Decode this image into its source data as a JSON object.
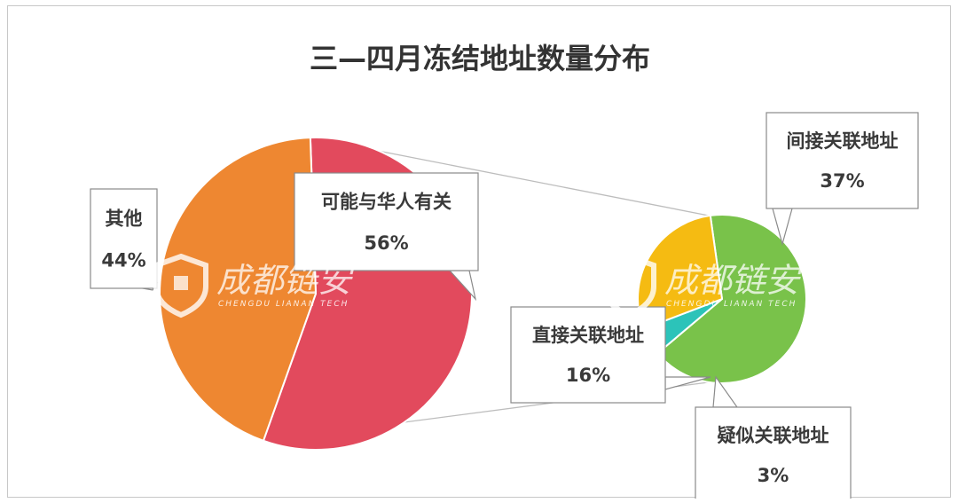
{
  "chart_data": {
    "type": "pie",
    "title": "三—四月冻结地址数量分布",
    "main_pie": [
      {
        "label": "可能与华人有关",
        "value": 56,
        "value_text": "56%",
        "color": "#E24A5D"
      },
      {
        "label": "其他",
        "value": 44,
        "value_text": "44%",
        "color": "#EE8731"
      }
    ],
    "sub_pie": {
      "parent": "可能与华人有关",
      "slices": [
        {
          "label": "间接关联地址",
          "value": 37,
          "value_text": "37%",
          "color": "#79C24A"
        },
        {
          "label": "疑似关联地址",
          "value": 3,
          "value_text": "3%",
          "color": "#2CC3B9"
        },
        {
          "label": "直接关联地址",
          "value": 16,
          "value_text": "16%",
          "color": "#F5BB12"
        }
      ]
    }
  },
  "watermark": {
    "text": "成都链安",
    "subtext": "CHENGDU LIANAN TECH"
  }
}
